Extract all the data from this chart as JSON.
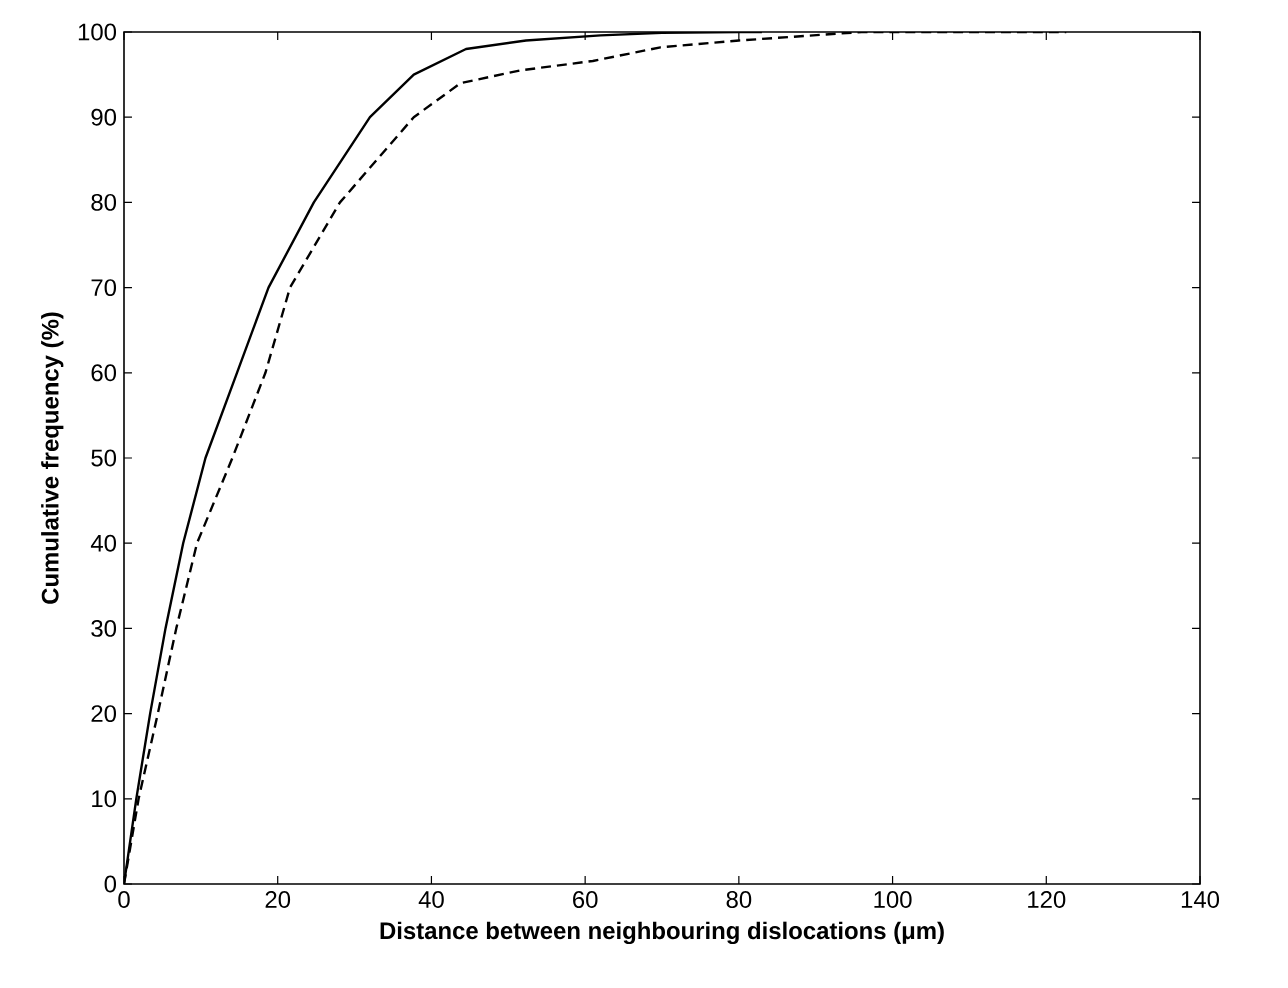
{
  "chart_data": {
    "type": "line",
    "xlabel": "Distance between neighbouring dislocations (μm)",
    "ylabel": "Cumulative frequency (%)",
    "xlim": [
      0,
      140
    ],
    "ylim": [
      0,
      100
    ],
    "xticks": [
      0,
      20,
      40,
      60,
      80,
      100,
      120,
      140
    ],
    "yticks": [
      0,
      10,
      20,
      30,
      40,
      50,
      60,
      70,
      80,
      90,
      100
    ],
    "marker": "none",
    "series": [
      {
        "color": "#000000",
        "line_style": "solid",
        "x": [
          0,
          1.6,
          3.4,
          5.4,
          7.7,
          10.6,
          14.7,
          18.8,
          24.7,
          32.0,
          37.7,
          44.5,
          52.3,
          62,
          70,
          80,
          83
        ],
        "values": [
          0,
          10,
          20,
          30,
          40,
          50,
          60,
          70,
          80,
          90,
          95,
          98,
          99,
          99.6,
          99.9,
          100,
          100
        ]
      },
      {
        "color": "#000000",
        "line_style": "dashed",
        "x": [
          0,
          1.9,
          4.4,
          6.8,
          9.5,
          14.1,
          18.4,
          21.6,
          28.1,
          37.7,
          43.8,
          51.6,
          61,
          69.8,
          80,
          96,
          122.6
        ],
        "values": [
          0,
          10,
          20,
          30,
          40,
          50,
          60,
          70,
          80,
          90,
          94,
          95.5,
          96.6,
          98.2,
          99,
          100,
          100
        ]
      }
    ]
  }
}
